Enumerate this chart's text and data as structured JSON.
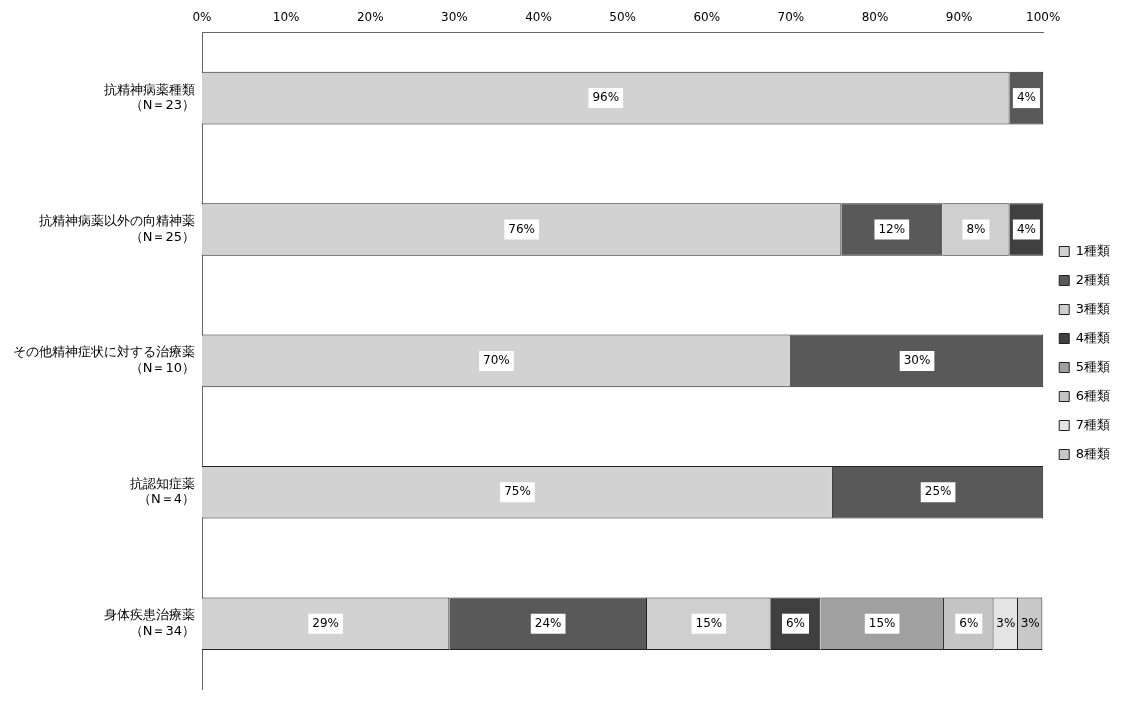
{
  "chart_data": {
    "type": "bar",
    "orientation": "horizontal",
    "stacked": true,
    "categories": [
      "抗精神病薬種類（N＝23）",
      "抗精神病薬以外の向精神薬（N＝25）",
      "その他精神症状に対する治療薬（N＝10）",
      "抗認知症薬（N＝4）",
      "身体疾患治療薬（N＝34）"
    ],
    "series": [
      {
        "name": "1種類",
        "color": "#d2d2d2",
        "values": [
          96,
          76,
          70,
          75,
          29.4
        ],
        "value_labels": [
          "96%",
          "76%",
          "70%",
          "75%",
          "29%"
        ]
      },
      {
        "name": "2種類",
        "color": "#595959",
        "values": [
          4,
          12,
          30,
          25,
          23.5
        ],
        "value_labels": [
          "4%",
          "12%",
          "30%",
          "25%",
          "24%"
        ]
      },
      {
        "name": "3種類",
        "color": "#cfcfcf",
        "values": [
          null,
          8,
          null,
          null,
          14.7
        ],
        "value_labels": [
          null,
          "8%",
          null,
          null,
          "15%"
        ]
      },
      {
        "name": "4種類",
        "color": "#404040",
        "values": [
          null,
          4,
          null,
          null,
          5.9
        ],
        "value_labels": [
          null,
          "4%",
          null,
          null,
          "6%"
        ]
      },
      {
        "name": "5種類",
        "color": "#a0a0a0",
        "values": [
          null,
          null,
          null,
          null,
          14.7
        ],
        "value_labels": [
          null,
          null,
          null,
          null,
          "15%"
        ]
      },
      {
        "name": "6種類",
        "color": "#c4c4c4",
        "values": [
          null,
          null,
          null,
          null,
          5.9
        ],
        "value_labels": [
          null,
          null,
          null,
          null,
          "6%"
        ]
      },
      {
        "name": "7種類",
        "color": "#e4e4e4",
        "values": [
          null,
          null,
          null,
          null,
          2.9
        ],
        "value_labels": [
          null,
          null,
          null,
          null,
          "3%"
        ]
      },
      {
        "name": "8種類",
        "color": "#c8c8c8",
        "values": [
          null,
          null,
          null,
          null,
          2.9
        ],
        "value_labels": [
          null,
          null,
          null,
          null,
          "3%"
        ]
      }
    ],
    "xlim": [
      0,
      100
    ],
    "xticks": [
      {
        "value": 0,
        "label": "0%"
      },
      {
        "value": 10,
        "label": "10%"
      },
      {
        "value": 20,
        "label": "20%"
      },
      {
        "value": 30,
        "label": "30%"
      },
      {
        "value": 40,
        "label": "40%"
      },
      {
        "value": 50,
        "label": "50%"
      },
      {
        "value": 60,
        "label": "60%"
      },
      {
        "value": 70,
        "label": "70%"
      },
      {
        "value": 80,
        "label": "80%"
      },
      {
        "value": 90,
        "label": "90%"
      },
      {
        "value": 100,
        "label": "100%"
      }
    ],
    "grid": false,
    "legend": "right"
  }
}
